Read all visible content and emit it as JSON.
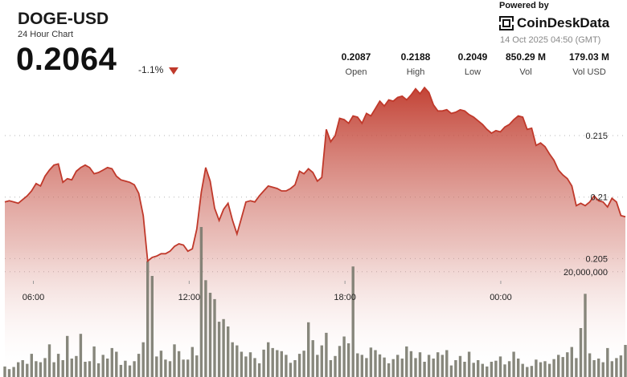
{
  "header": {
    "symbol": "DOGE-USD",
    "subtitle": "24 Hour Chart",
    "price": "0.2064",
    "change": "-1.1%",
    "change_direction": "down",
    "down_color": "#c0392b"
  },
  "brand": {
    "powered_by": "Powered by",
    "name": "CoinDeskData",
    "timestamp": "14 Oct 2025 04:50 (GMT)"
  },
  "stats": [
    {
      "value": "0.2087",
      "label": "Open"
    },
    {
      "value": "0.2188",
      "label": "High"
    },
    {
      "value": "0.2049",
      "label": "Low"
    },
    {
      "value": "850.29 M",
      "label": "Vol"
    },
    {
      "value": "179.03 M",
      "label": "Vol USD"
    }
  ],
  "chart_data": {
    "type": "area",
    "line_color": "#c0392b",
    "bar_color": "#7a7a6e",
    "x_tick_labels": [
      "06:00",
      "12:00",
      "18:00",
      "00:00"
    ],
    "x_tick_hours": [
      6,
      12,
      18,
      24
    ],
    "x_range_hours": [
      4.9,
      28.8
    ],
    "price_ticks": [
      0.205,
      0.21,
      0.215
    ],
    "price_range": [
      0.2032,
      0.2195
    ],
    "volume_tick": "20,000,000",
    "volume_tick_value": 20000000,
    "volume_range": [
      0,
      32000000
    ],
    "price": [
      0.2096,
      0.2097,
      0.2096,
      0.2095,
      0.2098,
      0.2101,
      0.2105,
      0.2111,
      0.2109,
      0.2117,
      0.2122,
      0.2126,
      0.2127,
      0.2112,
      0.2115,
      0.2114,
      0.2121,
      0.2124,
      0.2126,
      0.2124,
      0.2119,
      0.212,
      0.2122,
      0.2124,
      0.2123,
      0.2117,
      0.2114,
      0.2113,
      0.2112,
      0.211,
      0.2103,
      0.2085,
      0.2048,
      0.2051,
      0.2052,
      0.2054,
      0.2054,
      0.2056,
      0.206,
      0.2062,
      0.2061,
      0.2056,
      0.2058,
      0.2074,
      0.2104,
      0.2124,
      0.2113,
      0.2091,
      0.2081,
      0.209,
      0.2095,
      0.2081,
      0.207,
      0.2083,
      0.2096,
      0.2097,
      0.2096,
      0.2101,
      0.2105,
      0.2109,
      0.2108,
      0.2107,
      0.2105,
      0.2105,
      0.2107,
      0.211,
      0.2121,
      0.2119,
      0.2123,
      0.212,
      0.2113,
      0.2116,
      0.2155,
      0.2145,
      0.215,
      0.2164,
      0.2163,
      0.216,
      0.2166,
      0.2165,
      0.216,
      0.2168,
      0.2166,
      0.2172,
      0.2178,
      0.2174,
      0.2179,
      0.2178,
      0.2181,
      0.2182,
      0.2179,
      0.2183,
      0.2188,
      0.2184,
      0.2189,
      0.2185,
      0.2175,
      0.217,
      0.217,
      0.2171,
      0.2168,
      0.2169,
      0.2171,
      0.217,
      0.2167,
      0.2165,
      0.2162,
      0.2159,
      0.2155,
      0.2152,
      0.2154,
      0.2153,
      0.2157,
      0.2159,
      0.2163,
      0.2166,
      0.2165,
      0.2155,
      0.2156,
      0.2142,
      0.2144,
      0.2141,
      0.2135,
      0.213,
      0.2122,
      0.2118,
      0.2115,
      0.2109,
      0.2093,
      0.2095,
      0.2093,
      0.2096,
      0.2101,
      0.2097,
      0.2096,
      0.2092,
      0.2099,
      0.2096,
      0.2085,
      0.2084
    ],
    "volume": [
      2000000,
      1500000,
      1900000,
      2800000,
      3200000,
      2500000,
      4400000,
      3000000,
      2800000,
      3600000,
      6200000,
      2800000,
      4400000,
      3200000,
      7800000,
      3500000,
      4000000,
      8200000,
      2900000,
      3000000,
      5800000,
      2600000,
      4200000,
      3500000,
      5500000,
      4800000,
      2300000,
      3100000,
      2200000,
      3000000,
      4400000,
      6600000,
      22000000,
      19200000,
      3900000,
      5000000,
      3300000,
      3000000,
      6200000,
      4900000,
      3300000,
      3300000,
      5700000,
      4100000,
      28500000,
      18400000,
      16000000,
      14800000,
      10500000,
      11000000,
      9600000,
      6600000,
      6000000,
      4800000,
      3900000,
      4700000,
      3600000,
      2600000,
      5200000,
      6600000,
      5500000,
      5100000,
      4900000,
      4200000,
      2700000,
      3200000,
      4400000,
      5000000,
      10400000,
      7000000,
      4200000,
      6000000,
      8400000,
      3200000,
      4000000,
      5900000,
      7700000,
      6400000,
      21000000,
      4500000,
      4200000,
      3600000,
      5600000,
      5100000,
      4300000,
      3700000,
      2600000,
      3400000,
      4200000,
      3500000,
      5800000,
      4900000,
      3600000,
      4700000,
      2900000,
      4200000,
      3500000,
      4700000,
      4200000,
      5100000,
      2200000,
      3200000,
      4000000,
      2900000,
      4800000,
      2700000,
      3200000,
      2500000,
      2000000,
      2900000,
      3100000,
      3900000,
      2400000,
      3000000,
      4800000,
      3500000,
      2500000,
      1900000,
      2100000,
      3300000,
      2800000,
      3000000,
      2500000,
      3400000,
      4200000,
      3800000,
      4700000,
      5700000,
      3600000,
      9300000,
      15800000,
      4500000,
      3200000,
      3500000,
      2800000,
      5500000,
      3000000,
      3600000,
      4100000,
      6100000
    ]
  }
}
